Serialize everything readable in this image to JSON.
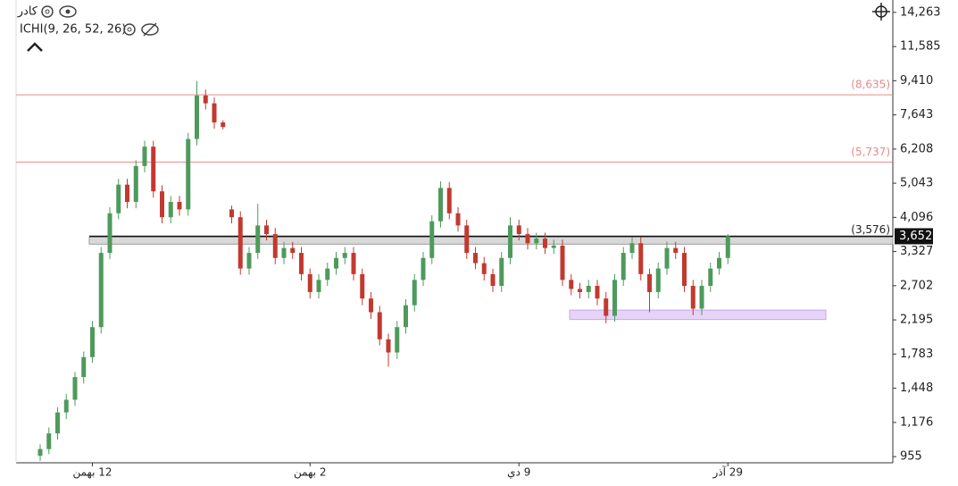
{
  "chart_data": {
    "type": "candlestick",
    "symbol": "کادر",
    "indicator": "ICHI(9, 26, 52, 26)",
    "categories": [
      null,
      null,
      null,
      null,
      null,
      null,
      "12 بهمن",
      null,
      null,
      null,
      null,
      null,
      null,
      null,
      null,
      null,
      null,
      null,
      null,
      null,
      null,
      null,
      null,
      null,
      null,
      null,
      null,
      null,
      null,
      null,
      null,
      "2 بهمن",
      null,
      null,
      null,
      null,
      null,
      null,
      null,
      null,
      null,
      null,
      null,
      null,
      null,
      null,
      null,
      null,
      null,
      null,
      null,
      null,
      null,
      null,
      null,
      "9 دي",
      null,
      null,
      null,
      null,
      null,
      null,
      null,
      null,
      null,
      null,
      null,
      null,
      null,
      null,
      null,
      null,
      null,
      null,
      null,
      null,
      null,
      null,
      null,
      "29 آذر"
    ],
    "open": [
      960,
      1000,
      1100,
      1250,
      1350,
      1550,
      1750,
      2100,
      3300,
      4200,
      5000,
      4500,
      5600,
      6300,
      4800,
      4100,
      4500,
      4300,
      6600,
      8600,
      8200,
      7300,
      4300,
      4100,
      3000,
      3300,
      3900,
      3700,
      3200,
      3400,
      3300,
      2900,
      2600,
      2800,
      3000,
      3200,
      3300,
      2900,
      2500,
      2300,
      1950,
      1800,
      2100,
      2400,
      2800,
      3200,
      4000,
      4900,
      4200,
      3900,
      3300,
      3100,
      2900,
      2700,
      3200,
      3900,
      3700,
      3500,
      3600,
      3400,
      3450,
      2800,
      2650,
      2600,
      2700,
      2500,
      2250,
      2800,
      3300,
      3500,
      2900,
      2600,
      3000,
      3400,
      3300,
      2700,
      2350,
      2700,
      3000,
      3200
    ],
    "high": [
      1030,
      1140,
      1290,
      1400,
      1600,
      1810,
      2180,
      3420,
      4360,
      5180,
      5180,
      5800,
      6530,
      6530,
      4980,
      4670,
      4670,
      6850,
      9400,
      8920,
      8500,
      7400,
      4400,
      4250,
      3420,
      4450,
      4040,
      3840,
      3530,
      3530,
      3420,
      3000,
      2900,
      3110,
      3320,
      3420,
      3420,
      3000,
      2600,
      2390,
      2020,
      2180,
      2490,
      2900,
      3320,
      4150,
      5100,
      5080,
      4360,
      4040,
      3420,
      3220,
      3000,
      3320,
      4100,
      4040,
      3840,
      3730,
      3730,
      3580,
      3580,
      2900,
      2750,
      2800,
      2800,
      2600,
      2900,
      3420,
      3630,
      3630,
      3000,
      3110,
      3530,
      3530,
      3420,
      2800,
      2800,
      3110,
      3320,
      3700
    ],
    "low": [
      930,
      970,
      1060,
      1200,
      1300,
      1490,
      1690,
      2020,
      3180,
      4050,
      4330,
      4330,
      5390,
      4620,
      3950,
      3950,
      4140,
      4140,
      6350,
      7900,
      7030,
      7000,
      3950,
      2890,
      2890,
      3180,
      3560,
      3080,
      3080,
      3180,
      2790,
      2500,
      2500,
      2700,
      2890,
      3080,
      2790,
      2400,
      2210,
      1880,
      1650,
      1730,
      2020,
      2310,
      2700,
      3080,
      3850,
      4050,
      3760,
      3180,
      2990,
      2790,
      2600,
      2600,
      3080,
      3560,
      3370,
      3370,
      3280,
      3280,
      2700,
      2550,
      2500,
      2500,
      2400,
      2150,
      2170,
      2700,
      3180,
      2790,
      2300,
      2500,
      2890,
      3180,
      2600,
      2260,
      2260,
      2600,
      2890,
      3080
    ],
    "close": [
      1000,
      1100,
      1250,
      1350,
      1550,
      1750,
      2100,
      3300,
      4200,
      5000,
      4500,
      5600,
      6300,
      4800,
      4100,
      4500,
      4300,
      6600,
      8600,
      8200,
      7300,
      7100,
      4100,
      3000,
      3300,
      3900,
      3700,
      3200,
      3400,
      3300,
      2900,
      2600,
      2800,
      3000,
      3200,
      3300,
      2900,
      2500,
      2300,
      1950,
      1800,
      2100,
      2400,
      2800,
      3200,
      4000,
      4900,
      4200,
      3900,
      3300,
      3100,
      2900,
      2700,
      3200,
      3900,
      3700,
      3500,
      3600,
      3400,
      3450,
      2800,
      2650,
      2600,
      2700,
      2500,
      2250,
      2800,
      3300,
      3500,
      2900,
      2600,
      3000,
      3400,
      3300,
      2700,
      2350,
      2700,
      3000,
      3200,
      3652
    ],
    "up_color": "#4e9a5c",
    "down_color": "#c2392f",
    "log_scale": true,
    "ylim": [
      920,
      15380
    ],
    "yticks": [
      {
        "value": 14263,
        "label": "14,263"
      },
      {
        "value": 11585,
        "label": "11,585"
      },
      {
        "value": 9410,
        "label": "9,410"
      },
      {
        "value": 7643,
        "label": "7,643"
      },
      {
        "value": 6208,
        "label": "6,208"
      },
      {
        "value": 5043,
        "label": "5,043"
      },
      {
        "value": 4096,
        "label": "4,096"
      },
      {
        "value": 3327,
        "label": "3,327"
      },
      {
        "value": 2702,
        "label": "2,702"
      },
      {
        "value": 2195,
        "label": "2,195"
      },
      {
        "value": 1783,
        "label": "1,783"
      },
      {
        "value": 1448,
        "label": "1,448"
      },
      {
        "value": 1176,
        "label": "1,176"
      },
      955
    ],
    "levels": [
      {
        "value": 8635,
        "label": "(8,635)",
        "color": "#e88a8a"
      },
      {
        "value": 5737,
        "label": "(5,737)",
        "color": "#e88a8a"
      },
      {
        "value": 3576,
        "label": "(3,576)",
        "color": "#9a9a9a"
      }
    ],
    "last_price": {
      "value": 3652,
      "label": "3,652"
    },
    "zone": {
      "low": 2200,
      "high": 2330,
      "color": "#e6d3f7"
    }
  }
}
